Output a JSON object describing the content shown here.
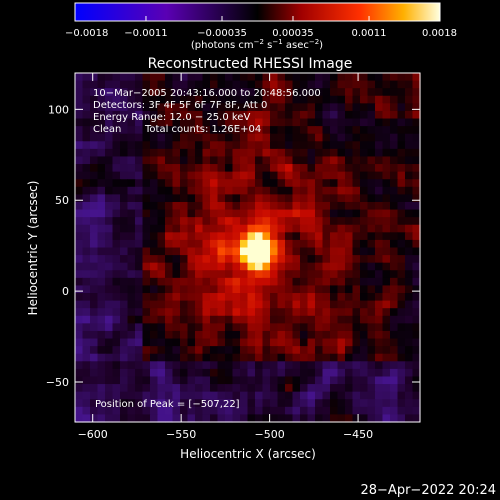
{
  "title": "Reconstructed RHESSI Image",
  "colorbar": {
    "ticks": [
      {
        "value": -0.0018,
        "label": "−0.0018"
      },
      {
        "value": -0.0011,
        "label": "−0.0011"
      },
      {
        "value": -0.00035,
        "label": "−0.00035"
      },
      {
        "value": 0.00035,
        "label": "0.00035"
      },
      {
        "value": 0.0011,
        "label": "0.0011"
      },
      {
        "value": 0.0018,
        "label": "0.0018"
      }
    ],
    "range": [
      -0.0018,
      0.0018
    ],
    "unit_base": "(photons cm",
    "unit_exp1": "−2",
    "unit_mid": " s",
    "unit_exp2": "−1",
    "unit_tail": " asec",
    "unit_exp3": "−2",
    "unit_close": ")"
  },
  "info": {
    "line1": "10−Mar−2005 20:43:16.000 to 20:48:56.000",
    "line2": "Detectors: 3F 4F 5F 6F 7F 8F, Att 0",
    "line3": "Energy Range: 12.0 − 25.0 keV",
    "line4_a": "Clean",
    "line4_b": "Total counts: 1.26E+04"
  },
  "peak_label": "Position of Peak = [−507,22]",
  "xaxis": {
    "label": "Heliocentric X (arcsec)",
    "range": [
      -610,
      -415
    ],
    "ticks": [
      {
        "value": -600,
        "label": "−600"
      },
      {
        "value": -550,
        "label": "−550"
      },
      {
        "value": -500,
        "label": "−500"
      },
      {
        "value": -450,
        "label": "−450"
      }
    ]
  },
  "yaxis": {
    "label": "Heliocentric Y (arcsec)",
    "range": [
      -72,
      120
    ],
    "ticks": [
      {
        "value": -50,
        "label": "−50"
      },
      {
        "value": 0,
        "label": "0"
      },
      {
        "value": 50,
        "label": "50"
      },
      {
        "value": 100,
        "label": "100"
      }
    ]
  },
  "peak": {
    "x": -507,
    "y": 22
  },
  "timestamp": "28−Apr−2022 20:24"
}
